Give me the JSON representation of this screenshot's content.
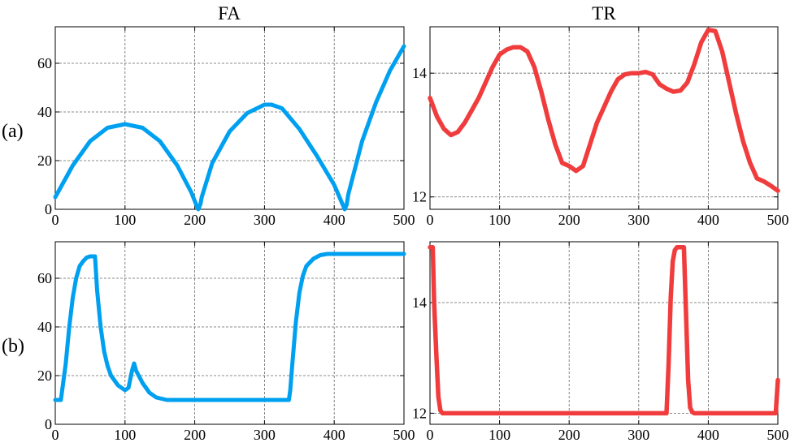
{
  "column_titles": [
    "FA",
    "TR"
  ],
  "row_labels": [
    "(a)",
    "(b)"
  ],
  "colors": {
    "fa": "#00a0f0",
    "tr": "#f03c3c"
  },
  "chart_data": [
    {
      "type": "line",
      "row": 0,
      "col": 0,
      "xlim": [
        0,
        500
      ],
      "ylim": [
        0,
        75
      ],
      "xticks": [
        0,
        100,
        200,
        300,
        400,
        500
      ],
      "yticks": [
        0,
        20,
        40,
        60
      ],
      "grid": true,
      "series": [
        {
          "color": "#00a0f0",
          "x": [
            0,
            25,
            50,
            75,
            100,
            125,
            150,
            175,
            195,
            202,
            205,
            208,
            210,
            225,
            250,
            275,
            300,
            310,
            325,
            350,
            375,
            400,
            412,
            415,
            418,
            420,
            440,
            460,
            480,
            500
          ],
          "y": [
            5,
            18,
            28,
            33.5,
            35,
            33.5,
            28,
            18,
            7,
            2,
            0,
            2,
            5,
            19,
            32,
            39.5,
            43,
            43,
            41.5,
            33,
            22,
            10,
            2,
            0,
            2,
            6,
            28,
            44,
            57,
            67
          ]
        }
      ]
    },
    {
      "type": "line",
      "row": 0,
      "col": 1,
      "xlim": [
        0,
        500
      ],
      "ylim": [
        11.8,
        14.75
      ],
      "xticks": [
        0,
        100,
        200,
        300,
        400,
        500
      ],
      "yticks": [
        12,
        14
      ],
      "grid": true,
      "series": [
        {
          "color": "#f03c3c",
          "x": [
            0,
            10,
            20,
            30,
            40,
            50,
            60,
            70,
            80,
            90,
            100,
            110,
            120,
            130,
            140,
            150,
            160,
            170,
            180,
            190,
            200,
            210,
            220,
            230,
            240,
            250,
            260,
            270,
            280,
            290,
            300,
            310,
            320,
            330,
            340,
            350,
            360,
            370,
            380,
            390,
            400,
            410,
            420,
            430,
            440,
            450,
            460,
            470,
            480,
            490,
            500
          ],
          "y": [
            13.6,
            13.3,
            13.1,
            13.0,
            13.05,
            13.2,
            13.4,
            13.6,
            13.85,
            14.1,
            14.3,
            14.38,
            14.42,
            14.42,
            14.35,
            14.1,
            13.7,
            13.25,
            12.85,
            12.55,
            12.5,
            12.42,
            12.5,
            12.85,
            13.2,
            13.45,
            13.7,
            13.9,
            13.98,
            14.0,
            14.0,
            14.02,
            13.98,
            13.82,
            13.75,
            13.7,
            13.72,
            13.85,
            14.15,
            14.5,
            14.7,
            14.68,
            14.35,
            13.85,
            13.35,
            12.9,
            12.55,
            12.3,
            12.25,
            12.18,
            12.1
          ]
        }
      ]
    },
    {
      "type": "line",
      "row": 1,
      "col": 0,
      "xlim": [
        0,
        500
      ],
      "ylim": [
        0,
        75
      ],
      "xticks": [
        0,
        100,
        200,
        300,
        400,
        500
      ],
      "yticks": [
        0,
        20,
        40,
        60
      ],
      "grid": true,
      "series": [
        {
          "color": "#00a0f0",
          "x": [
            0,
            8,
            15,
            20,
            25,
            30,
            35,
            40,
            45,
            50,
            57,
            60,
            65,
            70,
            75,
            80,
            90,
            100,
            105,
            110,
            113,
            116,
            125,
            135,
            145,
            160,
            180,
            200,
            250,
            300,
            335,
            337,
            340,
            345,
            350,
            355,
            360,
            370,
            380,
            390,
            400,
            420,
            450,
            500
          ],
          "y": [
            10,
            10,
            25,
            40,
            52,
            60,
            65,
            67,
            68.5,
            69,
            69,
            55,
            40,
            30,
            24,
            20,
            16,
            14,
            15,
            22,
            25,
            22,
            17,
            13,
            11,
            10,
            10,
            10,
            10,
            10,
            10,
            14,
            25,
            42,
            54,
            61,
            65,
            68,
            69.5,
            70,
            70,
            70,
            70,
            70
          ]
        }
      ]
    },
    {
      "type": "line",
      "row": 1,
      "col": 1,
      "xlim": [
        0,
        500
      ],
      "ylim": [
        11.8,
        15.1
      ],
      "xticks": [
        0,
        100,
        200,
        300,
        400,
        500
      ],
      "yticks": [
        12,
        14
      ],
      "grid": true,
      "series": [
        {
          "color": "#f03c3c",
          "x": [
            0,
            4,
            6,
            9,
            12,
            15,
            18,
            20,
            50,
            100,
            200,
            300,
            340,
            343,
            346,
            349,
            352,
            355,
            360,
            365,
            368,
            371,
            374,
            377,
            380,
            400,
            450,
            497,
            500
          ],
          "y": [
            15,
            15,
            14,
            13.1,
            12.3,
            12.05,
            12,
            12,
            12,
            12,
            12,
            12,
            12,
            12.9,
            14.1,
            14.75,
            14.95,
            15,
            15,
            15,
            13.8,
            12.6,
            12.1,
            12.02,
            12,
            12,
            12,
            12,
            12.6
          ]
        }
      ]
    }
  ]
}
